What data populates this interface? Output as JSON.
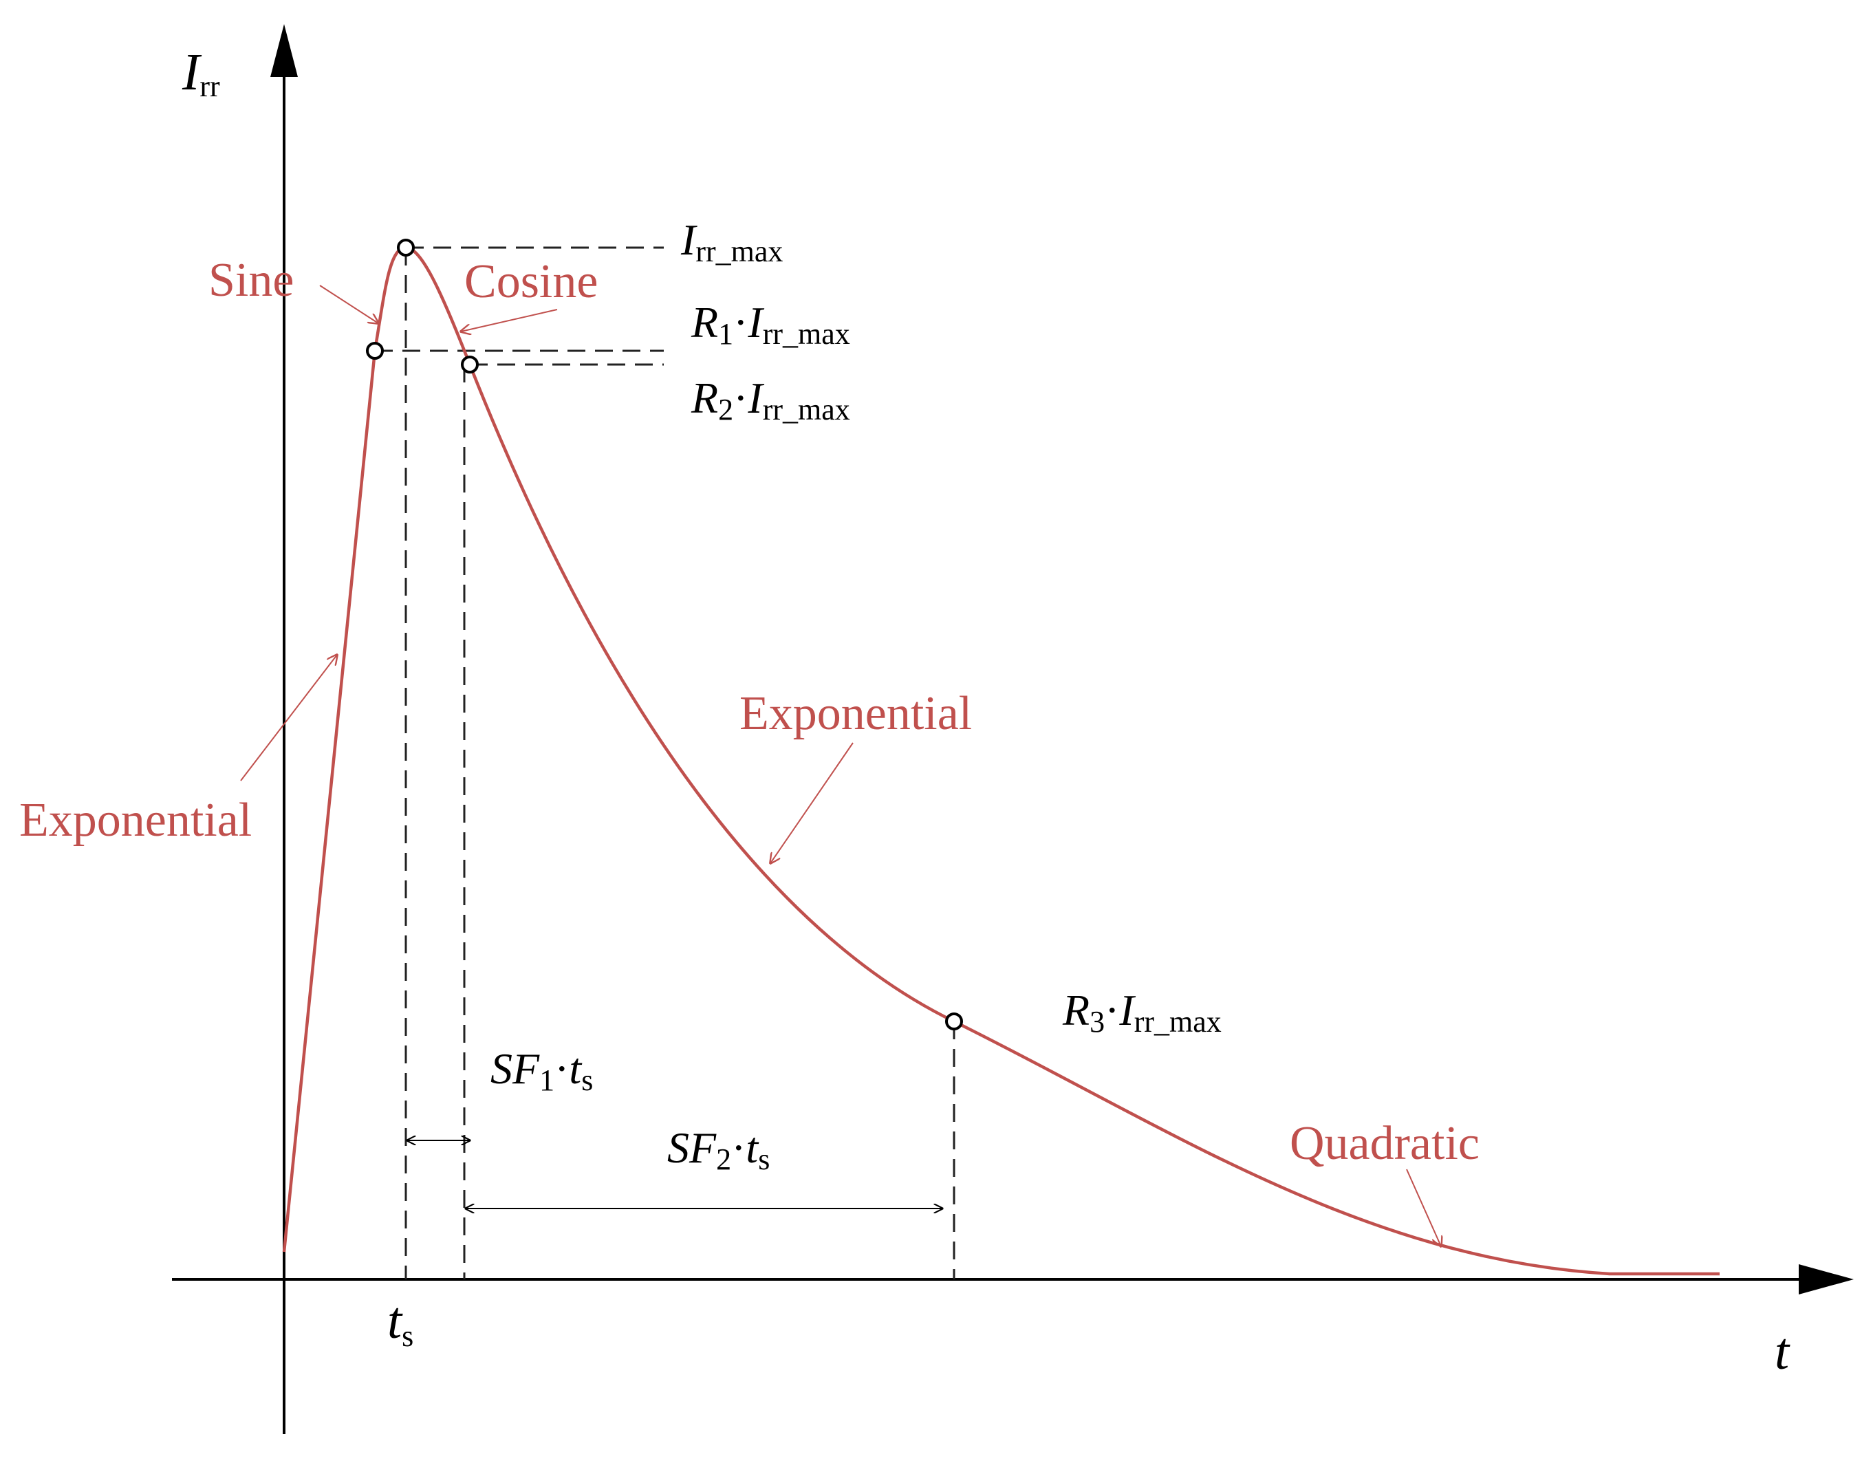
{
  "axes": {
    "y_label": {
      "main": "I",
      "sub": "rr"
    },
    "x_label": "t"
  },
  "labels": {
    "irr_max": {
      "main": "I",
      "sub": "rr_max"
    },
    "r1": {
      "r": "R",
      "rsub": "1",
      "dot": "·",
      "main": "I",
      "sub": "rr_max"
    },
    "r2": {
      "r": "R",
      "rsub": "2",
      "dot": "·",
      "main": "I",
      "sub": "rr_max"
    },
    "r3": {
      "r": "R",
      "rsub": "3",
      "dot": "·",
      "main": "I",
      "sub": "rr_max"
    },
    "sf1": {
      "a": "SF",
      "asub": "1",
      "dot": "·",
      "b": "t",
      "bsub": "s"
    },
    "sf2": {
      "a": "SF",
      "asub": "2",
      "dot": "·",
      "b": "t",
      "bsub": "s"
    },
    "ts": {
      "main": "t",
      "sub": "s"
    }
  },
  "segments": {
    "sine": "Sine",
    "cosine": "Cosine",
    "exp_rise": "Exponential",
    "exp_fall": "Exponential",
    "quadratic": "Quadratic"
  },
  "colors": {
    "curve": "#c0504d",
    "axis": "#000000"
  }
}
